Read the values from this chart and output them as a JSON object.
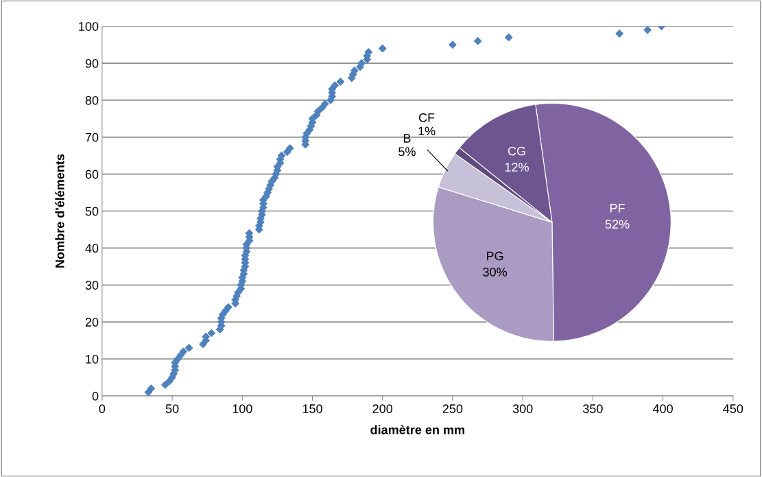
{
  "chart_data": [
    {
      "type": "scatter",
      "xlabel": "diamètre en mm",
      "ylabel": "Nombre d'éléments",
      "x": [
        33,
        35,
        45,
        48,
        50,
        51,
        52,
        52,
        52,
        54,
        56,
        58,
        62,
        72,
        74,
        74,
        78,
        84,
        85,
        85,
        85,
        86,
        88,
        90,
        95,
        95,
        96,
        97,
        99,
        99,
        100,
        100,
        101,
        101,
        102,
        102,
        102,
        102,
        103,
        103,
        103,
        105,
        105,
        105,
        112,
        112,
        113,
        113,
        114,
        114,
        115,
        115,
        115,
        117,
        118,
        119,
        120,
        121,
        123,
        124,
        125,
        125,
        127,
        127,
        128,
        132,
        134,
        145,
        145,
        145,
        146,
        148,
        149,
        150,
        150,
        153,
        154,
        157,
        159,
        163,
        164,
        164,
        164,
        166,
        170,
        178,
        179,
        180,
        184,
        185,
        189,
        189,
        190,
        200,
        250,
        268,
        290,
        369,
        389,
        399
      ],
      "values": [
        1,
        2,
        3,
        4,
        5,
        6,
        7,
        8,
        9,
        10,
        11,
        12,
        13,
        14,
        15,
        16,
        17,
        18,
        19,
        20,
        21,
        22,
        23,
        24,
        25,
        26,
        27,
        28,
        29,
        30,
        31,
        32,
        33,
        34,
        35,
        36,
        37,
        38,
        39,
        40,
        41,
        42,
        43,
        44,
        45,
        46,
        47,
        48,
        49,
        50,
        51,
        52,
        53,
        54,
        55,
        56,
        57,
        58,
        59,
        60,
        61,
        62,
        63,
        64,
        65,
        66,
        67,
        68,
        69,
        70,
        71,
        72,
        73,
        74,
        75,
        76,
        77,
        78,
        79,
        80,
        81,
        82,
        83,
        84,
        85,
        86,
        87,
        88,
        89,
        90,
        91,
        92,
        93,
        94,
        95,
        96,
        97,
        98,
        99,
        100
      ],
      "color": "#4f81bd",
      "marker": "diamond",
      "xlim": [
        0,
        450
      ],
      "xticks": [
        0,
        50,
        100,
        150,
        200,
        250,
        300,
        350,
        400,
        450
      ],
      "ylim": [
        0,
        100
      ],
      "yticks": [
        0,
        10,
        20,
        30,
        40,
        50,
        60,
        70,
        80,
        90,
        100
      ],
      "grid": "y"
    },
    {
      "type": "pie",
      "categories": [
        "PF",
        "PG",
        "B",
        "CF",
        "CG"
      ],
      "values": [
        52,
        30,
        5,
        1,
        12
      ],
      "colors": [
        "#8064a2",
        "#a99bc1",
        "#c7c0d9",
        "#5f4a7d",
        "#6d5590"
      ],
      "value_labels": [
        "52%",
        "30%",
        "5%",
        "1%",
        "12%"
      ]
    }
  ]
}
